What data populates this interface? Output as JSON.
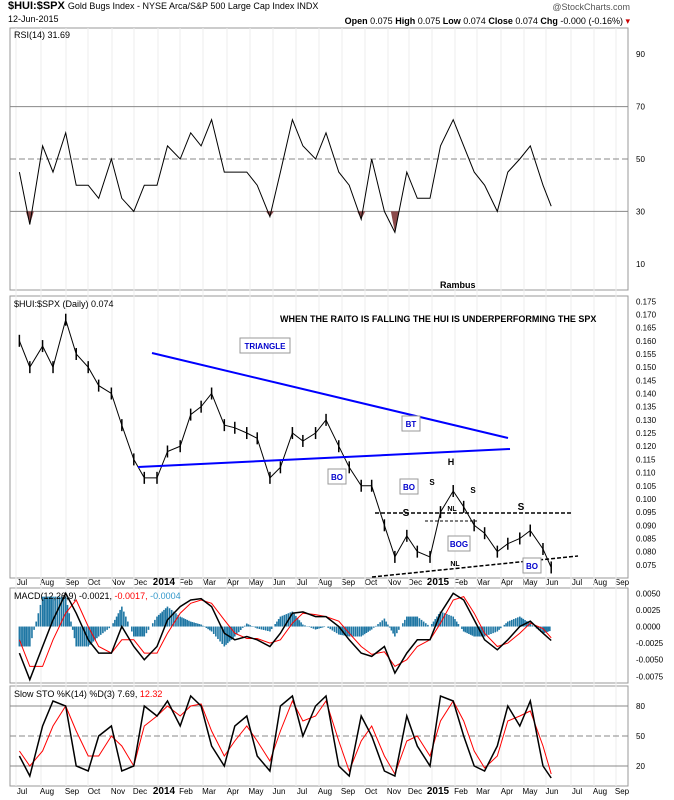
{
  "header": {
    "symbol": "$HUI:$SPX",
    "description": "Gold Bugs Index - NYSE Arca/S&P 500 Large Cap Index INDX",
    "date": "12-Jun-2015",
    "credit": "@StockCharts.com",
    "open_label": "Open",
    "open": "0.075",
    "high_label": "High",
    "high": "0.075",
    "low_label": "Low",
    "low": "0.074",
    "close_label": "Close",
    "close": "0.074",
    "chg_label": "Chg",
    "chg": "-0.000 (-0.16%)",
    "down_color": "#cc0000"
  },
  "chart_data": [
    {
      "panel": "rsi",
      "type": "line",
      "legend": "RSI(14) 31.69",
      "ylim": [
        0,
        100
      ],
      "yticks": [
        "90",
        "70",
        "50",
        "30",
        "10"
      ],
      "annotation": "Rambus",
      "x": [
        "2013-07-01",
        "2013-07-15",
        "2013-08-01",
        "2013-08-15",
        "2013-09-01",
        "2013-09-15",
        "2013-10-01",
        "2013-10-15",
        "2013-11-01",
        "2013-11-15",
        "2013-12-01",
        "2013-12-15",
        "2014-01-01",
        "2014-01-15",
        "2014-02-01",
        "2014-02-15",
        "2014-03-01",
        "2014-03-15",
        "2014-04-01",
        "2014-04-15",
        "2014-05-01",
        "2014-05-15",
        "2014-06-01",
        "2014-06-15",
        "2014-07-01",
        "2014-07-15",
        "2014-08-01",
        "2014-08-15",
        "2014-09-01",
        "2014-09-15",
        "2014-10-01",
        "2014-10-15",
        "2014-11-01",
        "2014-11-15",
        "2014-12-01",
        "2014-12-15",
        "2015-01-01",
        "2015-01-15",
        "2015-02-01",
        "2015-02-15",
        "2015-03-01",
        "2015-03-15",
        "2015-04-01",
        "2015-04-15",
        "2015-05-01",
        "2015-05-15",
        "2015-06-01",
        "2015-06-12"
      ],
      "values": [
        45,
        25,
        55,
        45,
        60,
        40,
        40,
        35,
        50,
        35,
        30,
        40,
        40,
        55,
        50,
        60,
        55,
        65,
        45,
        45,
        45,
        40,
        28,
        45,
        65,
        55,
        50,
        60,
        45,
        40,
        27,
        50,
        30,
        22,
        45,
        35,
        35,
        55,
        65,
        55,
        45,
        40,
        30,
        45,
        50,
        55,
        40,
        32
      ]
    },
    {
      "panel": "price",
      "type": "line",
      "legend": "$HUI:$SPX (Daily) 0.074",
      "ylim": [
        0.07,
        0.177
      ],
      "yticks": [
        "0.175",
        "0.170",
        "0.165",
        "0.160",
        "0.155",
        "0.150",
        "0.145",
        "0.140",
        "0.135",
        "0.130",
        "0.125",
        "0.120",
        "0.115",
        "0.110",
        "0.105",
        "0.100",
        "0.095",
        "0.090",
        "0.085",
        "0.080",
        "0.075"
      ],
      "title": "WHEN THE RAITO IS FALLING THE HUI IS UNDERPERFORMING THE SPX",
      "values": [
        0.16,
        0.15,
        0.158,
        0.15,
        0.168,
        0.155,
        0.15,
        0.143,
        0.14,
        0.128,
        0.115,
        0.108,
        0.108,
        0.118,
        0.12,
        0.132,
        0.135,
        0.14,
        0.128,
        0.127,
        0.125,
        0.123,
        0.108,
        0.112,
        0.125,
        0.122,
        0.125,
        0.13,
        0.12,
        0.112,
        0.105,
        0.105,
        0.09,
        0.078,
        0.086,
        0.08,
        0.078,
        0.095,
        0.103,
        0.097,
        0.09,
        0.087,
        0.08,
        0.083,
        0.085,
        0.088,
        0.081,
        0.074
      ],
      "annotations": {
        "triangle": "TRIANGLE",
        "bt": "BT",
        "bo1": "BO",
        "bo2": "BO",
        "bog": "BOG",
        "bo3": "BO",
        "h": "H",
        "s1": "S",
        "s2": "S",
        "s3": "S",
        "s4": "S",
        "nl1": "NL",
        "nl2": "NL"
      },
      "colors": {
        "trendline": "#0000ff",
        "label_text": "#0000cc"
      }
    },
    {
      "panel": "macd",
      "type": "line",
      "legend": "MACD(12,26,9)",
      "legend_macd": "-0.0021",
      "legend_signal": "-0.0017",
      "legend_hist": "-0.0004",
      "ylim": [
        -0.0085,
        0.0058
      ],
      "yticks": [
        "0.0050",
        "0.0025",
        "0.0000",
        "-0.0025",
        "-0.0050",
        "-0.0075"
      ],
      "macd": [
        -0.004,
        -0.008,
        -0.003,
        0.001,
        0.005,
        0.002,
        -0.002,
        -0.004,
        -0.004,
        0.0,
        -0.003,
        -0.005,
        -0.003,
        0.001,
        0.003,
        0.004,
        0.0042,
        0.003,
        -0.001,
        -0.002,
        -0.0015,
        -0.002,
        -0.003,
        -0.001,
        0.002,
        0.0022,
        0.0015,
        0.0015,
        0.0,
        -0.002,
        -0.004,
        -0.0045,
        -0.003,
        -0.007,
        -0.004,
        -0.002,
        -0.002,
        0.002,
        0.005,
        0.004,
        0.001,
        -0.002,
        -0.0035,
        -0.002,
        0.0,
        0.0008,
        -0.001,
        -0.0021
      ],
      "signal": [
        -0.002,
        -0.006,
        -0.006,
        -0.002,
        0.002,
        0.004,
        0.0,
        -0.003,
        -0.004,
        -0.002,
        -0.002,
        -0.004,
        -0.004,
        -0.001,
        0.002,
        0.0035,
        0.004,
        0.0035,
        0.001,
        -0.001,
        -0.0018,
        -0.0018,
        -0.0025,
        -0.002,
        0.0005,
        0.002,
        0.0018,
        0.0015,
        0.0008,
        -0.001,
        -0.003,
        -0.0042,
        -0.0038,
        -0.006,
        -0.005,
        -0.003,
        -0.002,
        0.0005,
        0.004,
        0.0045,
        0.002,
        -0.001,
        -0.003,
        -0.0025,
        -0.001,
        0.0005,
        -0.0003,
        -0.0017
      ],
      "colors": {
        "macd": "#000000",
        "signal": "#ff0000",
        "histogram": "#1f77a4"
      }
    },
    {
      "panel": "sto",
      "type": "line",
      "legend": "Slow STO %K(14) %D(3)",
      "legend_k": "7.69",
      "legend_d": "12.32",
      "ylim": [
        0,
        100
      ],
      "yticks": [
        "80",
        "50",
        "20"
      ],
      "k": [
        30,
        10,
        60,
        85,
        80,
        20,
        15,
        50,
        60,
        15,
        20,
        80,
        70,
        85,
        60,
        90,
        80,
        40,
        20,
        60,
        70,
        30,
        15,
        80,
        90,
        50,
        80,
        90,
        20,
        10,
        70,
        50,
        15,
        10,
        70,
        40,
        20,
        90,
        85,
        50,
        20,
        15,
        40,
        80,
        60,
        85,
        20,
        8
      ],
      "d": [
        35,
        20,
        35,
        60,
        80,
        55,
        30,
        30,
        50,
        40,
        20,
        60,
        70,
        80,
        70,
        80,
        82,
        55,
        30,
        45,
        60,
        45,
        25,
        55,
        85,
        65,
        70,
        85,
        45,
        15,
        45,
        60,
        30,
        12,
        45,
        50,
        30,
        65,
        85,
        65,
        35,
        18,
        30,
        65,
        70,
        75,
        40,
        12
      ],
      "colors": {
        "k": "#000000",
        "d": "#ff0000"
      }
    }
  ],
  "xaxis": {
    "months": [
      "Jul",
      "Aug",
      "Sep",
      "Oct",
      "Nov",
      "Dec",
      "2014",
      "Feb",
      "Mar",
      "Apr",
      "May",
      "Jun",
      "Jul",
      "Aug",
      "Sep",
      "Oct",
      "Nov",
      "Dec",
      "2015",
      "Feb",
      "Mar",
      "Apr",
      "May",
      "Jun",
      "Jul",
      "Aug",
      "Sep"
    ]
  }
}
